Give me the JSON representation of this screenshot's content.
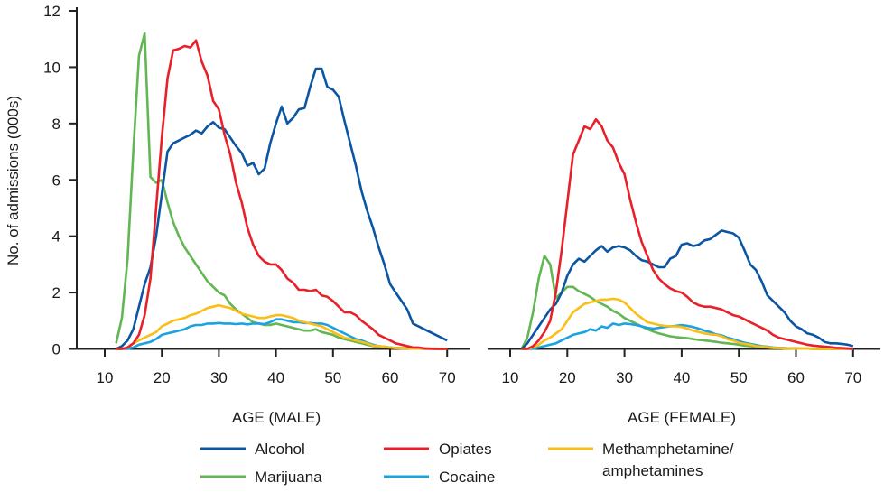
{
  "chart_data": [
    {
      "type": "line",
      "panel": "male",
      "xlabel": "AGE (MALE)",
      "ylabel": "No. of admissions (000s)",
      "xlim": [
        10,
        70
      ],
      "ylim": [
        0,
        12
      ],
      "xticks": [
        "10",
        "20",
        "30",
        "40",
        "50",
        "60",
        "70"
      ],
      "yticks": [
        "0",
        "2",
        "4",
        "6",
        "8",
        "10",
        "12"
      ],
      "grid": false,
      "x": [
        12,
        13,
        14,
        15,
        16,
        17,
        18,
        19,
        20,
        21,
        22,
        23,
        24,
        25,
        26,
        27,
        28,
        29,
        30,
        31,
        32,
        33,
        34,
        35,
        36,
        37,
        38,
        39,
        40,
        41,
        42,
        43,
        44,
        45,
        46,
        47,
        48,
        49,
        50,
        51,
        52,
        53,
        54,
        55,
        56,
        57,
        58,
        59,
        60,
        61,
        62,
        63,
        64,
        65,
        66,
        67,
        68,
        69,
        70
      ],
      "series": [
        {
          "name": "Alcohol",
          "color": "#0a56a3",
          "values": [
            0,
            0.1,
            0.3,
            0.7,
            1.5,
            2.3,
            2.9,
            4.0,
            5.5,
            7.0,
            7.3,
            7.4,
            7.5,
            7.6,
            7.75,
            7.65,
            7.9,
            8.05,
            7.85,
            7.8,
            7.5,
            7.2,
            6.95,
            6.5,
            6.6,
            6.2,
            6.4,
            7.3,
            8.0,
            8.6,
            8.0,
            8.2,
            8.5,
            8.55,
            9.3,
            9.95,
            9.95,
            9.3,
            9.2,
            8.95,
            8.1,
            7.3,
            6.5,
            5.6,
            4.9,
            4.3,
            3.6,
            3.0,
            2.3,
            2.0,
            1.7,
            1.4,
            0.9,
            0.8,
            0.7,
            0.6,
            0.5,
            0.4,
            0.3
          ]
        },
        {
          "name": "Marijuana",
          "color": "#62b653",
          "values": [
            0.2,
            1.1,
            3.2,
            7.0,
            10.4,
            11.2,
            6.1,
            5.9,
            6.0,
            5.2,
            4.5,
            4.0,
            3.6,
            3.3,
            3.0,
            2.7,
            2.4,
            2.2,
            2.0,
            1.9,
            1.6,
            1.4,
            1.25,
            1.1,
            0.95,
            0.9,
            0.85,
            0.85,
            0.9,
            0.85,
            0.8,
            0.75,
            0.7,
            0.65,
            0.65,
            0.7,
            0.6,
            0.55,
            0.5,
            0.4,
            0.35,
            0.3,
            0.25,
            0.2,
            0.15,
            0.1,
            0.08,
            0.06,
            0.05,
            0.04,
            0.03,
            0.03,
            0.02,
            0.02,
            0.01,
            0.01,
            0.01,
            0,
            0
          ]
        },
        {
          "name": "Opiates",
          "color": "#e8202a",
          "values": [
            0,
            0,
            0.05,
            0.2,
            0.5,
            1.2,
            2.5,
            5.0,
            7.5,
            9.6,
            10.6,
            10.65,
            10.75,
            10.7,
            10.95,
            10.2,
            9.7,
            8.8,
            8.5,
            7.6,
            6.9,
            5.9,
            5.2,
            4.3,
            3.7,
            3.3,
            3.1,
            3.0,
            3.0,
            2.8,
            2.5,
            2.35,
            2.1,
            2.1,
            2.05,
            2.1,
            1.9,
            1.85,
            1.7,
            1.5,
            1.3,
            1.3,
            1.2,
            1.0,
            0.85,
            0.7,
            0.5,
            0.4,
            0.3,
            0.2,
            0.15,
            0.1,
            0.05,
            0.05,
            0.02,
            0.01,
            0,
            0,
            0
          ]
        },
        {
          "name": "Cocaine",
          "color": "#1aa3e0",
          "values": [
            0,
            0,
            0,
            0.05,
            0.15,
            0.2,
            0.25,
            0.35,
            0.5,
            0.55,
            0.6,
            0.65,
            0.7,
            0.8,
            0.85,
            0.85,
            0.9,
            0.9,
            0.92,
            0.9,
            0.9,
            0.88,
            0.9,
            0.87,
            0.9,
            0.9,
            0.88,
            0.95,
            1.05,
            1.05,
            1.0,
            0.95,
            0.95,
            0.92,
            0.92,
            0.9,
            0.9,
            0.85,
            0.75,
            0.65,
            0.55,
            0.45,
            0.35,
            0.3,
            0.22,
            0.15,
            0.1,
            0.08,
            0.05,
            0.03,
            0.02,
            0.02,
            0.01,
            0.01,
            0,
            0,
            0,
            0,
            0
          ]
        },
        {
          "name": "Methamphetamine/ amphetamines",
          "color": "#fbbd16",
          "values": [
            0,
            0,
            0.05,
            0.2,
            0.3,
            0.4,
            0.5,
            0.6,
            0.8,
            0.9,
            1.0,
            1.05,
            1.1,
            1.2,
            1.25,
            1.35,
            1.45,
            1.5,
            1.55,
            1.5,
            1.45,
            1.35,
            1.25,
            1.2,
            1.15,
            1.1,
            1.1,
            1.15,
            1.2,
            1.2,
            1.15,
            1.1,
            1.0,
            0.95,
            0.9,
            0.85,
            0.8,
            0.7,
            0.6,
            0.5,
            0.4,
            0.35,
            0.3,
            0.25,
            0.2,
            0.12,
            0.1,
            0.08,
            0.05,
            0.03,
            0.02,
            0.02,
            0.01,
            0.01,
            0,
            0,
            0,
            0,
            0
          ]
        }
      ]
    },
    {
      "type": "line",
      "panel": "female",
      "xlabel": "AGE (FEMALE)",
      "xlim": [
        10,
        70
      ],
      "ylim": [
        0,
        12
      ],
      "xticks": [
        "10",
        "20",
        "30",
        "40",
        "50",
        "60",
        "70"
      ],
      "grid": false,
      "x": [
        12,
        13,
        14,
        15,
        16,
        17,
        18,
        19,
        20,
        21,
        22,
        23,
        24,
        25,
        26,
        27,
        28,
        29,
        30,
        31,
        32,
        33,
        34,
        35,
        36,
        37,
        38,
        39,
        40,
        41,
        42,
        43,
        44,
        45,
        46,
        47,
        48,
        49,
        50,
        51,
        52,
        53,
        54,
        55,
        56,
        57,
        58,
        59,
        60,
        61,
        62,
        63,
        64,
        65,
        66,
        67,
        68,
        69,
        70
      ],
      "series": [
        {
          "name": "Alcohol",
          "color": "#0a56a3",
          "values": [
            0,
            0.2,
            0.5,
            0.8,
            1.1,
            1.4,
            1.6,
            2.0,
            2.6,
            3.0,
            3.2,
            3.1,
            3.3,
            3.5,
            3.65,
            3.45,
            3.6,
            3.65,
            3.6,
            3.5,
            3.3,
            3.15,
            3.1,
            3.0,
            2.9,
            2.9,
            3.2,
            3.3,
            3.7,
            3.75,
            3.65,
            3.7,
            3.85,
            3.9,
            4.05,
            4.2,
            4.15,
            4.1,
            3.95,
            3.5,
            3.0,
            2.8,
            2.4,
            1.9,
            1.7,
            1.5,
            1.3,
            1.0,
            0.8,
            0.7,
            0.55,
            0.5,
            0.4,
            0.25,
            0.2,
            0.2,
            0.18,
            0.15,
            0.1
          ]
        },
        {
          "name": "Marijuana",
          "color": "#62b653",
          "values": [
            0,
            0.4,
            1.3,
            2.5,
            3.3,
            3.0,
            1.8,
            2.0,
            2.2,
            2.2,
            2.05,
            1.95,
            1.85,
            1.7,
            1.6,
            1.5,
            1.35,
            1.25,
            1.1,
            1.0,
            0.9,
            0.8,
            0.7,
            0.62,
            0.55,
            0.5,
            0.45,
            0.42,
            0.4,
            0.38,
            0.35,
            0.32,
            0.3,
            0.28,
            0.25,
            0.22,
            0.2,
            0.18,
            0.15,
            0.12,
            0.1,
            0.08,
            0.06,
            0.05,
            0.03,
            0.03,
            0.02,
            0.02,
            0.01,
            0.01,
            0.01,
            0,
            0,
            0,
            0,
            0,
            0,
            0,
            0
          ]
        },
        {
          "name": "Opiates",
          "color": "#e8202a",
          "values": [
            0,
            0,
            0.1,
            0.3,
            0.6,
            1.0,
            2.0,
            3.5,
            5.2,
            6.9,
            7.4,
            7.9,
            7.8,
            8.15,
            7.9,
            7.4,
            7.15,
            6.6,
            6.2,
            5.3,
            4.5,
            3.8,
            3.3,
            2.8,
            2.5,
            2.3,
            2.15,
            2.05,
            2.0,
            1.85,
            1.65,
            1.55,
            1.5,
            1.5,
            1.45,
            1.4,
            1.3,
            1.2,
            1.15,
            1.05,
            0.95,
            0.85,
            0.75,
            0.65,
            0.5,
            0.4,
            0.35,
            0.3,
            0.25,
            0.2,
            0.15,
            0.12,
            0.1,
            0.08,
            0.06,
            0.04,
            0.03,
            0.02,
            0
          ]
        },
        {
          "name": "Cocaine",
          "color": "#1aa3e0",
          "values": [
            0,
            0,
            0,
            0.05,
            0.1,
            0.15,
            0.2,
            0.3,
            0.4,
            0.5,
            0.55,
            0.6,
            0.7,
            0.65,
            0.8,
            0.75,
            0.9,
            0.85,
            0.9,
            0.88,
            0.85,
            0.8,
            0.75,
            0.72,
            0.75,
            0.78,
            0.8,
            0.82,
            0.85,
            0.82,
            0.78,
            0.72,
            0.65,
            0.6,
            0.52,
            0.48,
            0.4,
            0.35,
            0.28,
            0.22,
            0.18,
            0.14,
            0.1,
            0.08,
            0.05,
            0.04,
            0.03,
            0.02,
            0.02,
            0.01,
            0.01,
            0.01,
            0,
            0,
            0,
            0,
            0,
            0,
            0
          ]
        },
        {
          "name": "Methamphetamine/ amphetamines",
          "color": "#fbbd16",
          "values": [
            0,
            0,
            0.05,
            0.15,
            0.3,
            0.4,
            0.55,
            0.7,
            1.0,
            1.3,
            1.45,
            1.6,
            1.65,
            1.7,
            1.75,
            1.75,
            1.78,
            1.75,
            1.65,
            1.45,
            1.25,
            1.1,
            0.95,
            0.9,
            0.85,
            0.82,
            0.8,
            0.8,
            0.78,
            0.72,
            0.65,
            0.6,
            0.55,
            0.52,
            0.5,
            0.45,
            0.35,
            0.3,
            0.22,
            0.18,
            0.15,
            0.1,
            0.08,
            0.06,
            0.04,
            0.03,
            0.02,
            0.02,
            0.01,
            0.01,
            0.01,
            0,
            0,
            0,
            0,
            0,
            0,
            0,
            0
          ]
        }
      ]
    }
  ],
  "legend": [
    {
      "label": "Alcohol",
      "color": "#0a56a3"
    },
    {
      "label": "Opiates",
      "color": "#e8202a"
    },
    {
      "label_lines": [
        "Methamphetamine/",
        "amphetamines"
      ],
      "color": "#fbbd16"
    },
    {
      "label": "Marijuana",
      "color": "#62b653"
    },
    {
      "label": "Cocaine",
      "color": "#1aa3e0"
    }
  ]
}
